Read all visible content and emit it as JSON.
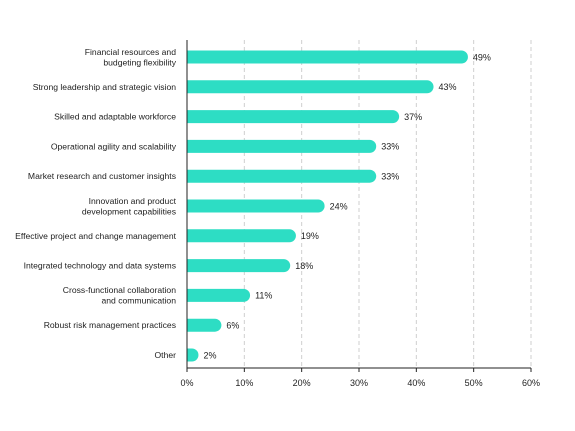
{
  "chart_data": {
    "type": "bar",
    "orientation": "horizontal",
    "categories": [
      "Financial resources and\nbudgeting flexibility",
      "Strong leadership and strategic vision",
      "Skilled and adaptable workforce",
      "Operational agility and scalability",
      "Market research and customer insights",
      "Innovation and product\ndevelopment capabilities",
      "Effective project and change management",
      "Integrated technology and data systems",
      "Cross-functional collaboration\nand communication",
      "Robust risk management practices",
      "Other"
    ],
    "values": [
      49,
      43,
      37,
      33,
      33,
      24,
      19,
      18,
      11,
      6,
      2
    ],
    "value_labels": [
      "49%",
      "43%",
      "37%",
      "33%",
      "33%",
      "24%",
      "19%",
      "18%",
      "11%",
      "6%",
      "2%"
    ],
    "title": "",
    "xlabel": "",
    "ylabel": "",
    "xlim": [
      0,
      60
    ],
    "xticks": [
      0,
      10,
      20,
      30,
      40,
      50,
      60
    ],
    "xtick_labels": [
      "0%",
      "10%",
      "20%",
      "30%",
      "40%",
      "50%",
      "60%"
    ],
    "grid": "vertical dashed",
    "legend": "none",
    "bar_color": "#2dddc4",
    "grid_color": "#cfcfcf",
    "axis_color": "#222222"
  }
}
